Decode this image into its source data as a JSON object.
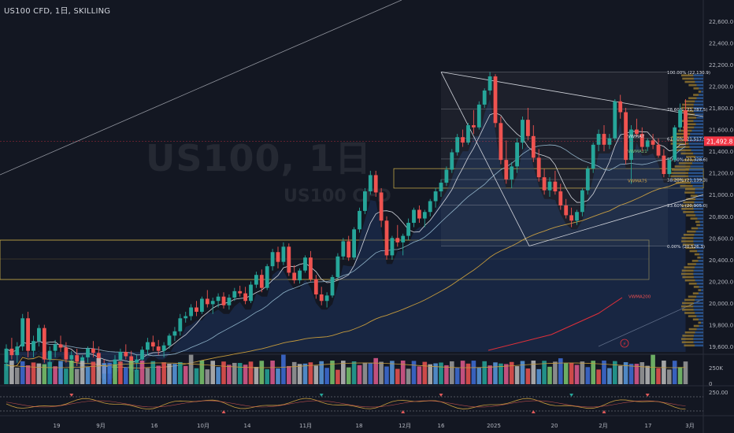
{
  "header": {
    "symbol": "US100 CFD, 1日, SKILLING"
  },
  "watermark": {
    "line1": "US100, 1日",
    "line2": "US100 CFD"
  },
  "colors": {
    "up": "#26a69a",
    "down": "#ef5350",
    "bg": "#131722",
    "fib": "#d1d4dc",
    "vwma7": "#d1d4dc",
    "vwma21": "#8fb3c9",
    "vwma75": "#c49a3c",
    "vwma200": "#e0303a",
    "zone": "#d4b54a",
    "last": "#f23645"
  },
  "chart_data": {
    "type": "candlestick",
    "ylim": [
      19550,
      22700
    ],
    "y_ticks": [
      "22,600.0",
      "22,400.0",
      "22,200.0",
      "22,000.0",
      "21,800.0",
      "21,600.0",
      "21,400.0",
      "21,200.0",
      "21,000.0",
      "20,800.0",
      "20,600.0",
      "20,400.0",
      "20,200.0",
      "20,000.0",
      "19,800.0",
      "19,600.0"
    ],
    "x_ticks": [
      "19",
      "9月",
      "16",
      "10月",
      "14",
      "11月",
      "18",
      "12月",
      "16",
      "2025",
      "20",
      "2月",
      "17",
      "3月"
    ],
    "last_price": "21,492.8",
    "ohlc": [
      [
        19450,
        19620,
        19380,
        19580
      ],
      [
        19580,
        19680,
        19480,
        19520
      ],
      [
        19520,
        19640,
        19450,
        19600
      ],
      [
        19600,
        19900,
        19560,
        19860
      ],
      [
        19860,
        19920,
        19500,
        19560
      ],
      [
        19560,
        19700,
        19500,
        19650
      ],
      [
        19650,
        19800,
        19600,
        19770
      ],
      [
        19770,
        19800,
        19450,
        19480
      ],
      [
        19480,
        19600,
        19430,
        19560
      ],
      [
        19560,
        19660,
        19500,
        19620
      ],
      [
        19620,
        19700,
        19550,
        19590
      ],
      [
        19590,
        19640,
        19450,
        19480
      ],
      [
        19480,
        19560,
        19400,
        19520
      ],
      [
        19520,
        19580,
        19420,
        19460
      ],
      [
        19460,
        19520,
        19380,
        19500
      ],
      [
        19500,
        19600,
        19450,
        19580
      ],
      [
        19580,
        19650,
        19500,
        19540
      ],
      [
        19540,
        19600,
        19380,
        19420
      ],
      [
        19420,
        19480,
        19300,
        19350
      ],
      [
        19350,
        19450,
        19300,
        19420
      ],
      [
        19420,
        19520,
        19380,
        19480
      ],
      [
        19480,
        19580,
        19420,
        19550
      ],
      [
        19550,
        19620,
        19480,
        19510
      ],
      [
        19510,
        19560,
        19400,
        19450
      ],
      [
        19450,
        19520,
        19380,
        19480
      ],
      [
        19480,
        19600,
        19450,
        19570
      ],
      [
        19570,
        19680,
        19520,
        19640
      ],
      [
        19640,
        19700,
        19560,
        19600
      ],
      [
        19600,
        19660,
        19520,
        19560
      ],
      [
        19560,
        19640,
        19500,
        19610
      ],
      [
        19610,
        19720,
        19580,
        19700
      ],
      [
        19700,
        19780,
        19650,
        19740
      ],
      [
        19740,
        19900,
        19700,
        19860
      ],
      [
        19860,
        19920,
        19820,
        19880
      ],
      [
        19880,
        19990,
        19840,
        19960
      ],
      [
        19960,
        20020,
        19880,
        19920
      ],
      [
        19920,
        20060,
        19900,
        20040
      ],
      [
        20040,
        20120,
        19960,
        19990
      ],
      [
        19990,
        20050,
        19900,
        20020
      ],
      [
        20020,
        20090,
        19960,
        20060
      ],
      [
        20060,
        20100,
        19950,
        19980
      ],
      [
        19980,
        20080,
        19940,
        20050
      ],
      [
        20050,
        20140,
        20020,
        20110
      ],
      [
        20110,
        20160,
        20060,
        20090
      ],
      [
        20090,
        20150,
        19990,
        20020
      ],
      [
        20020,
        20200,
        20000,
        20170
      ],
      [
        20170,
        20290,
        20140,
        20260
      ],
      [
        20260,
        20310,
        20100,
        20140
      ],
      [
        20140,
        20360,
        20120,
        20340
      ],
      [
        20340,
        20500,
        20300,
        20470
      ],
      [
        20470,
        20520,
        20320,
        20380
      ],
      [
        20380,
        20560,
        20350,
        20520
      ],
      [
        20520,
        20550,
        20250,
        20280
      ],
      [
        20280,
        20350,
        20180,
        20210
      ],
      [
        20210,
        20320,
        20180,
        20300
      ],
      [
        20300,
        20440,
        20280,
        20420
      ],
      [
        20420,
        20480,
        20200,
        20220
      ],
      [
        20220,
        20260,
        20040,
        20080
      ],
      [
        20080,
        20150,
        19980,
        20020
      ],
      [
        20020,
        20100,
        19960,
        20070
      ],
      [
        20070,
        20260,
        20050,
        20240
      ],
      [
        20240,
        20460,
        20220,
        20430
      ],
      [
        20430,
        20600,
        20400,
        20570
      ],
      [
        20570,
        20620,
        20390,
        20420
      ],
      [
        20420,
        20700,
        20400,
        20680
      ],
      [
        20680,
        20880,
        20650,
        20850
      ],
      [
        20850,
        21060,
        20820,
        21030
      ],
      [
        21030,
        21220,
        21000,
        21180
      ],
      [
        21180,
        21220,
        20980,
        21020
      ],
      [
        21020,
        21060,
        20700,
        20760
      ],
      [
        20760,
        20800,
        20400,
        20440
      ],
      [
        20440,
        20620,
        20400,
        20600
      ],
      [
        20600,
        20720,
        20520,
        20560
      ],
      [
        20560,
        20640,
        20440,
        20620
      ],
      [
        20620,
        20780,
        20580,
        20740
      ],
      [
        20740,
        20880,
        20700,
        20860
      ],
      [
        20860,
        20900,
        20740,
        20780
      ],
      [
        20780,
        20860,
        20700,
        20840
      ],
      [
        20840,
        20960,
        20800,
        20940
      ],
      [
        20940,
        21060,
        20880,
        21030
      ],
      [
        21030,
        21140,
        20980,
        21110
      ],
      [
        21110,
        21260,
        21080,
        21230
      ],
      [
        21230,
        21420,
        21200,
        21390
      ],
      [
        21390,
        21560,
        21360,
        21530
      ],
      [
        21530,
        21600,
        21440,
        21480
      ],
      [
        21480,
        21660,
        21460,
        21640
      ],
      [
        21640,
        21780,
        21560,
        21620
      ],
      [
        21620,
        21860,
        21600,
        21830
      ],
      [
        21830,
        21980,
        21800,
        21960
      ],
      [
        21960,
        22130,
        21920,
        22090
      ],
      [
        22090,
        22110,
        21620,
        21660
      ],
      [
        21660,
        21720,
        21280,
        21320
      ],
      [
        21320,
        21500,
        21100,
        21140
      ],
      [
        21140,
        21300,
        21060,
        21260
      ],
      [
        21260,
        21520,
        21200,
        21480
      ],
      [
        21480,
        21720,
        21420,
        21690
      ],
      [
        21690,
        21800,
        21500,
        21540
      ],
      [
        21540,
        21640,
        21300,
        21340
      ],
      [
        21340,
        21420,
        21120,
        21160
      ],
      [
        21160,
        21240,
        21000,
        21040
      ],
      [
        21040,
        21160,
        20980,
        21120
      ],
      [
        21120,
        21220,
        21000,
        21030
      ],
      [
        21030,
        21100,
        20860,
        20900
      ],
      [
        20900,
        20960,
        20780,
        20810
      ],
      [
        20810,
        20880,
        20700,
        20760
      ],
      [
        20760,
        20860,
        20720,
        20840
      ],
      [
        20840,
        21060,
        20800,
        21040
      ],
      [
        21040,
        21260,
        21000,
        21240
      ],
      [
        21240,
        21480,
        21200,
        21460
      ],
      [
        21460,
        21600,
        21400,
        21560
      ],
      [
        21560,
        21640,
        21400,
        21460
      ],
      [
        21460,
        21560,
        21420,
        21520
      ],
      [
        21520,
        21880,
        21500,
        21860
      ],
      [
        21860,
        21920,
        21700,
        21760
      ],
      [
        21760,
        21800,
        21280,
        21320
      ],
      [
        21320,
        21640,
        21100,
        21600
      ],
      [
        21600,
        21700,
        21540,
        21560
      ],
      [
        21560,
        21620,
        21400,
        21440
      ],
      [
        21440,
        21520,
        21400,
        21500
      ],
      [
        21500,
        21560,
        21420,
        21460
      ],
      [
        21460,
        21520,
        21340,
        21360
      ],
      [
        21360,
        21420,
        21160,
        21190
      ],
      [
        21190,
        21340,
        21160,
        21320
      ],
      [
        21320,
        21640,
        21300,
        21620
      ],
      [
        21620,
        21840,
        21580,
        21780
      ],
      [
        21780,
        21880,
        21460,
        21493
      ]
    ],
    "fib_levels": [
      {
        "label": "100.00% (22,130.9)",
        "value": 22130.9
      },
      {
        "label": "78.60% (21,787.5)",
        "value": 21787.5
      },
      {
        "label": "61.80% (21,517.9)",
        "value": 21517.9
      },
      {
        "label": "50.00% (21,328.6)",
        "value": 21328.6
      },
      {
        "label": "38.20% (21,139.3)",
        "value": 21139.3
      },
      {
        "label": "23.60% (20,905.0)",
        "value": 20905.0
      },
      {
        "label": "0.00% (20,526.3)",
        "value": 20526.3
      }
    ],
    "ma_labels": {
      "vwma7": "VWMA7",
      "vwma21": "VWMA21",
      "vwma75": "VWMA75",
      "vwma200": "VWMA200"
    },
    "volume_ticks": [
      "250K",
      "0"
    ],
    "osc_ticks": [
      "250.00"
    ]
  }
}
